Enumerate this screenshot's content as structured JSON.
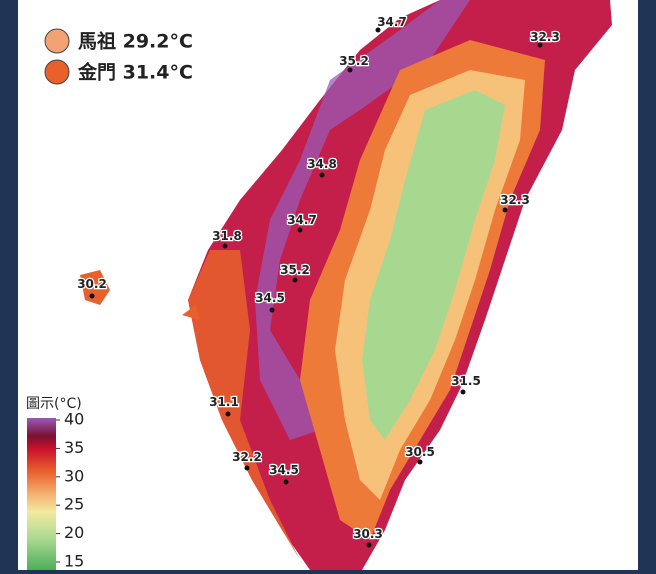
{
  "legend": [
    {
      "label": "馬祖 29.2°C"
    },
    {
      "label": "金門 31.4°C"
    }
  ],
  "stations": [
    "34.7",
    "32.3",
    "35.2",
    "34.8",
    "32.3",
    "34.7",
    "31.8",
    "35.2",
    "30.2",
    "34.5",
    "31.5",
    "31.1",
    "30.5",
    "32.2",
    "34.5",
    "30.3"
  ],
  "colorbar": {
    "title": "圖示(°C)",
    "ticks": [
      40,
      35,
      30,
      25,
      20,
      15
    ]
  }
}
